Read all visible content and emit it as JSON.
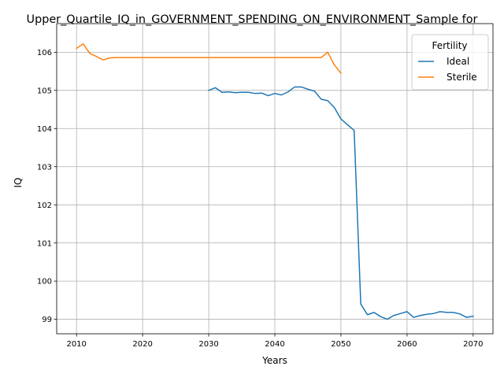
{
  "chart_data": {
    "type": "line",
    "title": "Upper_Quartile_IQ_in_GOVERNMENT_SPENDING_ON_ENVIRONMENT_Sample for",
    "xlabel": "Years",
    "ylabel": "IQ",
    "xlim": [
      2007,
      2073
    ],
    "ylim": [
      98.62,
      106.75
    ],
    "xticks": [
      2010,
      2020,
      2030,
      2040,
      2050,
      2060,
      2070
    ],
    "yticks": [
      99,
      100,
      101,
      102,
      103,
      104,
      105,
      106
    ],
    "grid": true,
    "legend": {
      "title": "Fertility",
      "placement": "top-right"
    },
    "series": [
      {
        "name": "Ideal",
        "color": "#1f77b4",
        "x": [
          2030,
          2031,
          2032,
          2033,
          2034,
          2035,
          2036,
          2037,
          2038,
          2039,
          2040,
          2041,
          2042,
          2043,
          2044,
          2045,
          2046,
          2047,
          2048,
          2049,
          2050,
          2051,
          2052,
          2053,
          2054,
          2055,
          2056,
          2057,
          2058,
          2059,
          2060,
          2061,
          2062,
          2063,
          2064,
          2065,
          2066,
          2067,
          2068,
          2069,
          2070
        ],
        "y": [
          105.0,
          105.07,
          104.95,
          104.96,
          104.94,
          104.95,
          104.95,
          104.92,
          104.93,
          104.86,
          104.92,
          104.88,
          104.96,
          105.09,
          105.09,
          105.03,
          104.98,
          104.77,
          104.73,
          104.55,
          104.25,
          104.1,
          103.95,
          99.4,
          99.12,
          99.18,
          99.07,
          99.0,
          99.1,
          99.15,
          99.2,
          99.05,
          99.1,
          99.13,
          99.15,
          99.2,
          99.18,
          99.18,
          99.14,
          99.05,
          99.08
        ]
      },
      {
        "name": "Sterile",
        "color": "#ff7f0e",
        "x": [
          2010,
          2011,
          2012,
          2013,
          2014,
          2015,
          2016,
          2017,
          2018,
          2019,
          2020,
          2021,
          2022,
          2023,
          2024,
          2025,
          2026,
          2027,
          2028,
          2029,
          2030,
          2031,
          2032,
          2033,
          2034,
          2035,
          2036,
          2037,
          2038,
          2039,
          2040,
          2041,
          2042,
          2043,
          2044,
          2045,
          2046,
          2047,
          2048,
          2049,
          2050
        ],
        "y": [
          106.1,
          106.22,
          105.97,
          105.89,
          105.8,
          105.85,
          105.86,
          105.86,
          105.86,
          105.86,
          105.86,
          105.86,
          105.86,
          105.86,
          105.86,
          105.86,
          105.86,
          105.86,
          105.86,
          105.86,
          105.86,
          105.86,
          105.86,
          105.86,
          105.86,
          105.86,
          105.86,
          105.86,
          105.86,
          105.86,
          105.86,
          105.86,
          105.86,
          105.86,
          105.86,
          105.86,
          105.86,
          105.86,
          106.0,
          105.67,
          105.45
        ]
      }
    ]
  }
}
